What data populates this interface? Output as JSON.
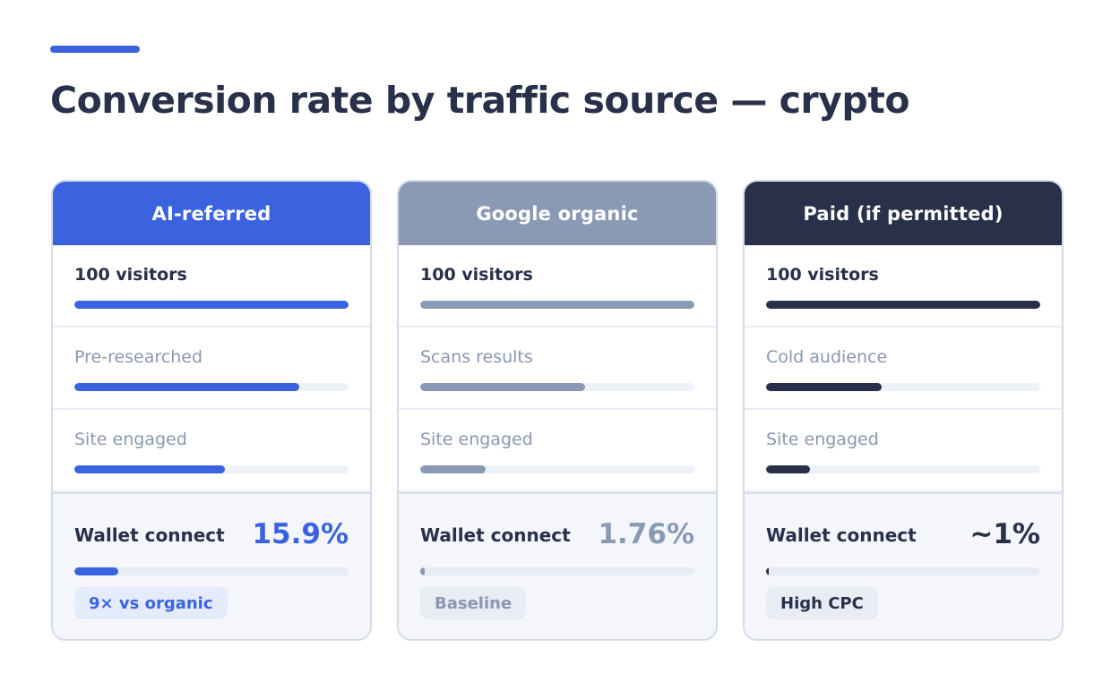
{
  "title": "Conversion rate by traffic source — crypto",
  "colors": {
    "accent": "#3b63e0",
    "ai": "#3b63e0",
    "google": "#8a9ab5",
    "paid": "#28304a"
  },
  "chart_data": {
    "type": "bar",
    "title": "Conversion rate by traffic source — crypto",
    "series": [
      {
        "name": "AI-referred",
        "color": "#3b63e0",
        "stages": [
          {
            "label": "100 visitors",
            "value": 100
          },
          {
            "label": "Pre-researched",
            "value": 82
          },
          {
            "label": "Site engaged",
            "value": 55
          },
          {
            "label": "Wallet connect",
            "value": 15.9,
            "display": "15.9%"
          }
        ],
        "badge": "9× vs organic",
        "badge_bg": "#e4ebfb",
        "badge_color": "#3b63e0"
      },
      {
        "name": "Google organic",
        "color": "#8a9ab5",
        "stages": [
          {
            "label": "100 visitors",
            "value": 100
          },
          {
            "label": "Scans results",
            "value": 60
          },
          {
            "label": "Site engaged",
            "value": 24
          },
          {
            "label": "Wallet connect",
            "value": 1.76,
            "display": "1.76%"
          }
        ],
        "badge": "Baseline",
        "badge_bg": "#e8ecf3",
        "badge_color": "#8a97b0"
      },
      {
        "name": "Paid (if permitted)",
        "color": "#28304a",
        "stages": [
          {
            "label": "100 visitors",
            "value": 100
          },
          {
            "label": "Cold audience",
            "value": 42
          },
          {
            "label": "Site engaged",
            "value": 16
          },
          {
            "label": "Wallet connect",
            "value": 1,
            "display": "~1%"
          }
        ],
        "badge": "High CPC",
        "badge_bg": "#e9ecf2",
        "badge_color": "#28304a"
      }
    ]
  }
}
